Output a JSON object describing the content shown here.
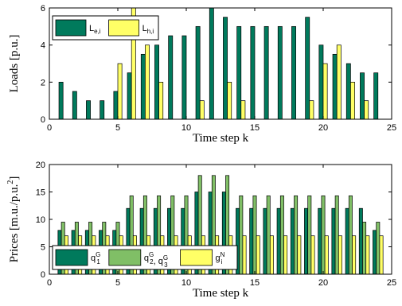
{
  "chart_data": [
    {
      "type": "bar",
      "xlabel": "Time step k",
      "ylabel": "Loads [p.u.]",
      "xlim": [
        0,
        25
      ],
      "ylim": [
        0,
        6
      ],
      "xticks": [
        "0",
        "5",
        "10",
        "15",
        "20",
        "25"
      ],
      "yticks": [
        "0",
        "2",
        "4",
        "6"
      ],
      "x": [
        1,
        2,
        3,
        4,
        5,
        6,
        7,
        8,
        9,
        10,
        11,
        12,
        13,
        14,
        15,
        16,
        17,
        18,
        19,
        20,
        21,
        22,
        23,
        24
      ],
      "series": [
        {
          "name": "L",
          "subscript": "e,i",
          "color": "#007a5c",
          "values": [
            2,
            1.5,
            1,
            1,
            1.5,
            2.5,
            3.5,
            4,
            4.5,
            4.5,
            5,
            6,
            5.5,
            5,
            5,
            5,
            5,
            5,
            5.5,
            4,
            3.5,
            3,
            2.5,
            2.5
          ]
        },
        {
          "name": "L",
          "subscript": "h,i",
          "color": "#ffff66",
          "values": [
            0,
            0,
            0,
            0,
            3,
            6,
            4,
            2,
            0,
            0,
            1,
            0,
            2,
            1,
            0,
            0,
            0,
            0,
            1,
            3,
            4,
            2,
            1,
            0
          ]
        }
      ],
      "legend_position": "top-left"
    },
    {
      "type": "bar",
      "xlabel": "Time step k",
      "ylabel": "Prices [m.u./p.u.",
      "ylabel_sup": "2",
      "ylabel_tail": "]",
      "xlim": [
        0,
        25
      ],
      "ylim": [
        0,
        20
      ],
      "xticks": [
        "0",
        "5",
        "10",
        "15",
        "20",
        "25"
      ],
      "yticks": [
        "0",
        "5",
        "10",
        "15",
        "20"
      ],
      "x": [
        1,
        2,
        3,
        4,
        5,
        6,
        7,
        8,
        9,
        10,
        11,
        12,
        13,
        14,
        15,
        16,
        17,
        18,
        19,
        20,
        21,
        22,
        23,
        24
      ],
      "series": [
        {
          "name": "q",
          "subscript": "1",
          "superscript": "G",
          "color": "#007a5c",
          "values": [
            8,
            8,
            8,
            8,
            8,
            12,
            12,
            12,
            12,
            12,
            15,
            15,
            15,
            12,
            12,
            12,
            12,
            12,
            12,
            12,
            12,
            12,
            12,
            8
          ]
        },
        {
          "name": "q",
          "subscript": "2",
          "superscript": "G",
          "name2": ", q",
          "subscript2": "3",
          "superscript2": "G",
          "color": "#80bf66",
          "values": [
            9.5,
            9.5,
            9.5,
            9.5,
            9.5,
            14.3,
            14.3,
            14.3,
            14.3,
            14.3,
            18,
            18,
            18,
            14.3,
            14.3,
            14.3,
            14.3,
            14.3,
            14.3,
            14.3,
            14.3,
            14.3,
            9.5,
            9.5
          ]
        },
        {
          "name": "g",
          "subscript": "i",
          "superscript": "N",
          "color": "#ffff66",
          "values": [
            7,
            7,
            7,
            7,
            7,
            7,
            7,
            7,
            7,
            7,
            7,
            7,
            7,
            7,
            7,
            7,
            7,
            7,
            7,
            7,
            7,
            7,
            7,
            7
          ]
        }
      ],
      "legend_position": "bottom-left"
    }
  ]
}
